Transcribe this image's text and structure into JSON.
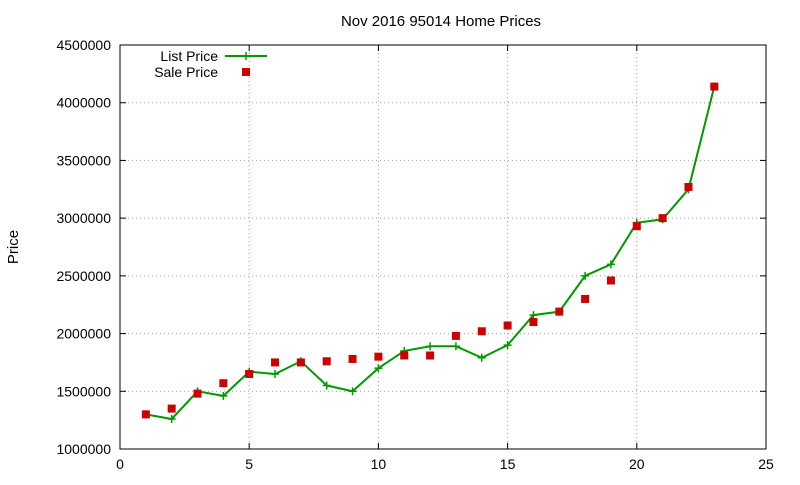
{
  "chart_data": {
    "type": "line",
    "title": "Nov 2016 95014 Home Prices",
    "xlabel": "",
    "ylabel": "Price",
    "xlim": [
      0,
      25
    ],
    "ylim": [
      1000000,
      4500000
    ],
    "x_ticks": [
      0,
      5,
      10,
      15,
      20,
      25
    ],
    "y_ticks": [
      1000000,
      1500000,
      2000000,
      2500000,
      3000000,
      3500000,
      4000000,
      4500000
    ],
    "grid": true,
    "legend_position": "top-left",
    "series": [
      {
        "name": "List Price",
        "style": "line-with-plus-markers",
        "color": "#009900",
        "x": [
          1,
          2,
          3,
          4,
          5,
          6,
          7,
          8,
          9,
          10,
          11,
          12,
          13,
          14,
          15,
          16,
          17,
          18,
          19,
          20,
          21,
          22,
          23
        ],
        "values": [
          1300000,
          1260000,
          1500000,
          1460000,
          1670000,
          1650000,
          1760000,
          1550000,
          1500000,
          1700000,
          1850000,
          1890000,
          1890000,
          1790000,
          1900000,
          2160000,
          2190000,
          2500000,
          2600000,
          2960000,
          2990000,
          3250000,
          4140000
        ]
      },
      {
        "name": "Sale Price",
        "style": "square-markers",
        "color": "#cc0000",
        "x": [
          1,
          2,
          3,
          4,
          5,
          6,
          7,
          8,
          9,
          10,
          11,
          12,
          13,
          14,
          15,
          16,
          17,
          18,
          19,
          20,
          21,
          22,
          23
        ],
        "values": [
          1300000,
          1350000,
          1480000,
          1570000,
          1650000,
          1750000,
          1750000,
          1760000,
          1780000,
          1800000,
          1810000,
          1810000,
          1980000,
          2020000,
          2070000,
          2100000,
          2190000,
          2300000,
          2460000,
          2930000,
          3000000,
          3270000,
          4140000
        ]
      }
    ]
  }
}
